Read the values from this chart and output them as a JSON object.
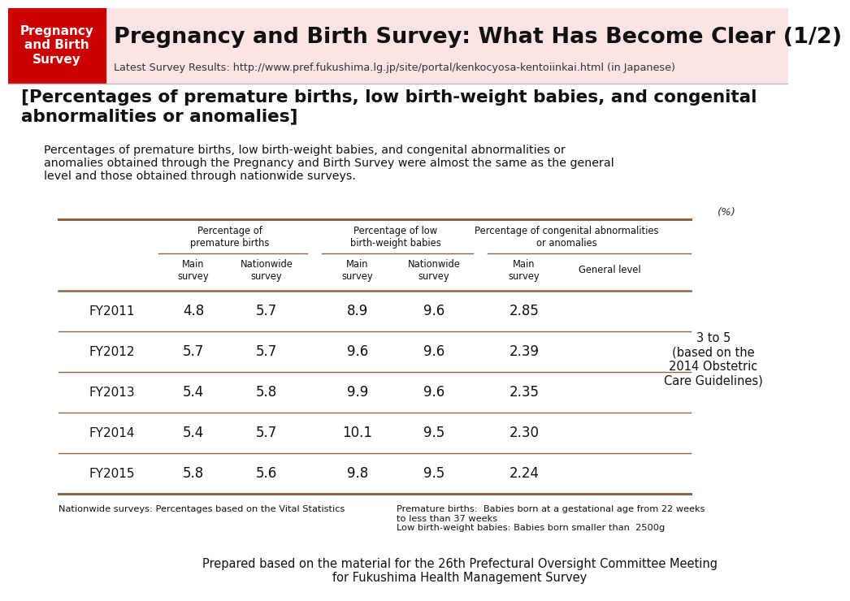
{
  "title_box_text": "Pregnancy\nand Birth\nSurvey",
  "title_box_bg": "#cc0000",
  "title_box_fg": "#ffffff",
  "title_main": "Pregnancy and Birth Survey: What Has Become Clear (1/2)",
  "title_sub": "Latest Survey Results: http://www.pref.fukushima.lg.jp/site/portal/kenkocyosa-kentoiinkai.html (in Japanese)",
  "header_bg": "#fce4e4",
  "section_title": "[Percentages of premature births, low birth-weight babies, and congenital\nabnormalities or anomalies]",
  "section_body": "Percentages of premature births, low birth-weight babies, and congenital abnormalities or\nanomalies obtained through the Pregnancy and Birth Survey were almost the same as the general\nlevel and those obtained through nationwide surveys.",
  "table_line_color": "#8B6347",
  "col_headers_level1": [
    "Percentage of\npremature births",
    "Percentage of low\nbirth-weight babies",
    "Percentage of congenital abnormalities\nor anomalies"
  ],
  "col_headers_level2": [
    "Main\nsurvey",
    "Nationwide\nsurvey",
    "Main\nsurvey",
    "Nationwide\nsurvey",
    "Main\nsurvey",
    "General level"
  ],
  "row_labels": [
    "FY2011",
    "FY2012",
    "FY2013",
    "FY2014",
    "FY2015"
  ],
  "data": [
    [
      "4.8",
      "5.7",
      "8.9",
      "9.6",
      "2.85"
    ],
    [
      "5.7",
      "5.7",
      "9.6",
      "9.6",
      "2.39"
    ],
    [
      "5.4",
      "5.8",
      "9.9",
      "9.6",
      "2.35"
    ],
    [
      "5.4",
      "5.7",
      "10.1",
      "9.5",
      "2.30"
    ],
    [
      "5.8",
      "5.6",
      "9.8",
      "9.5",
      "2.24"
    ]
  ],
  "general_level_note": "3 to 5\n(based on the\n2014 Obstetric\nCare Guidelines)",
  "footnote1": "Nationwide surveys: Percentages based on the Vital Statistics",
  "footnote2": "Premature births:  Babies born at a gestational age from 22 weeks\nto less than 37 weeks\nLow birth-weight babies: Babies born smaller than  2500g",
  "bottom_note": "Prepared based on the material for the 26th Prefectural Oversight Committee Meeting\nfor Fukushima Health Management Survey",
  "percent_label": "(%)"
}
